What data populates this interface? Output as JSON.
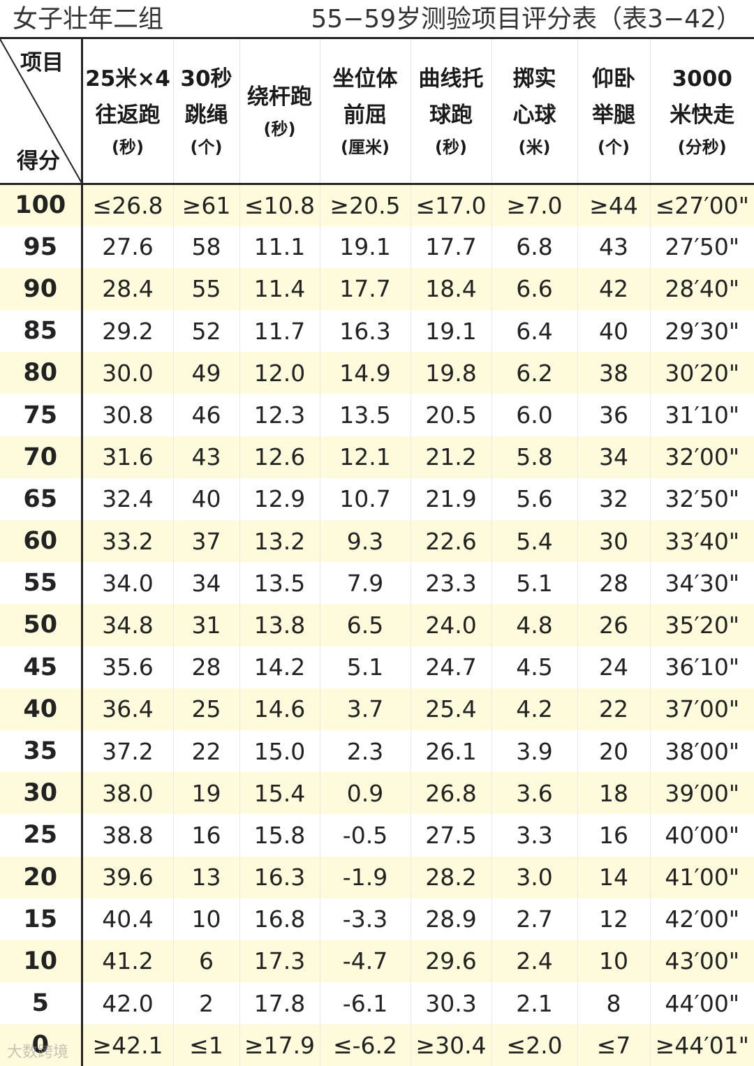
{
  "title": {
    "left": "女子壮年二组",
    "right": "55−59岁测验项目评分表（表3−42）"
  },
  "header": {
    "corner_top": "项目",
    "corner_bottom": "得分",
    "columns": [
      {
        "lines": [
          "25米×4",
          "往返跑"
        ],
        "unit": "(秒)"
      },
      {
        "lines": [
          "30秒",
          "跳绳"
        ],
        "unit": "(个)"
      },
      {
        "lines": [
          "绕杆跑"
        ],
        "unit": "(秒)"
      },
      {
        "lines": [
          "坐位体",
          "前屈"
        ],
        "unit": "(厘米)"
      },
      {
        "lines": [
          "曲线托",
          "球跑"
        ],
        "unit": "(秒)"
      },
      {
        "lines": [
          "掷实",
          "心球"
        ],
        "unit": "(米)"
      },
      {
        "lines": [
          "仰卧",
          "举腿"
        ],
        "unit": "(个)"
      },
      {
        "lines": [
          "3000",
          "米快走"
        ],
        "unit": "(分秒)"
      }
    ]
  },
  "rows": [
    {
      "score": "100",
      "values": [
        "≤26.8",
        "≥61",
        "≤10.8",
        "≥20.5",
        "≤17.0",
        "≥7.0",
        "≥44",
        "≤27′00\""
      ]
    },
    {
      "score": "95",
      "values": [
        "27.6",
        "58",
        "11.1",
        "19.1",
        "17.7",
        "6.8",
        "43",
        "27′50\""
      ]
    },
    {
      "score": "90",
      "values": [
        "28.4",
        "55",
        "11.4",
        "17.7",
        "18.4",
        "6.6",
        "42",
        "28′40\""
      ]
    },
    {
      "score": "85",
      "values": [
        "29.2",
        "52",
        "11.7",
        "16.3",
        "19.1",
        "6.4",
        "40",
        "29′30\""
      ]
    },
    {
      "score": "80",
      "values": [
        "30.0",
        "49",
        "12.0",
        "14.9",
        "19.8",
        "6.2",
        "38",
        "30′20\""
      ]
    },
    {
      "score": "75",
      "values": [
        "30.8",
        "46",
        "12.3",
        "13.5",
        "20.5",
        "6.0",
        "36",
        "31′10\""
      ]
    },
    {
      "score": "70",
      "values": [
        "31.6",
        "43",
        "12.6",
        "12.1",
        "21.2",
        "5.8",
        "34",
        "32′00\""
      ]
    },
    {
      "score": "65",
      "values": [
        "32.4",
        "40",
        "12.9",
        "10.7",
        "21.9",
        "5.6",
        "32",
        "32′50\""
      ]
    },
    {
      "score": "60",
      "values": [
        "33.2",
        "37",
        "13.2",
        "9.3",
        "22.6",
        "5.4",
        "30",
        "33′40\""
      ]
    },
    {
      "score": "55",
      "values": [
        "34.0",
        "34",
        "13.5",
        "7.9",
        "23.3",
        "5.1",
        "28",
        "34′30\""
      ]
    },
    {
      "score": "50",
      "values": [
        "34.8",
        "31",
        "13.8",
        "6.5",
        "24.0",
        "4.8",
        "26",
        "35′20\""
      ]
    },
    {
      "score": "45",
      "values": [
        "35.6",
        "28",
        "14.2",
        "5.1",
        "24.7",
        "4.5",
        "24",
        "36′10\""
      ]
    },
    {
      "score": "40",
      "values": [
        "36.4",
        "25",
        "14.6",
        "3.7",
        "25.4",
        "4.2",
        "22",
        "37′00\""
      ]
    },
    {
      "score": "35",
      "values": [
        "37.2",
        "22",
        "15.0",
        "2.3",
        "26.1",
        "3.9",
        "20",
        "38′00\""
      ]
    },
    {
      "score": "30",
      "values": [
        "38.0",
        "19",
        "15.4",
        "0.9",
        "26.8",
        "3.6",
        "18",
        "39′00\""
      ]
    },
    {
      "score": "25",
      "values": [
        "38.8",
        "16",
        "15.8",
        "-0.5",
        "27.5",
        "3.3",
        "16",
        "40′00\""
      ]
    },
    {
      "score": "20",
      "values": [
        "39.6",
        "13",
        "16.3",
        "-1.9",
        "28.2",
        "3.0",
        "14",
        "41′00\""
      ]
    },
    {
      "score": "15",
      "values": [
        "40.4",
        "10",
        "16.8",
        "-3.3",
        "28.9",
        "2.7",
        "12",
        "42′00\""
      ]
    },
    {
      "score": "10",
      "values": [
        "41.2",
        "6",
        "17.3",
        "-4.7",
        "29.6",
        "2.4",
        "10",
        "43′00\""
      ]
    },
    {
      "score": "5",
      "values": [
        "42.0",
        "2",
        "17.8",
        "-6.1",
        "30.3",
        "2.1",
        "8",
        "44′00\""
      ]
    },
    {
      "score": "0",
      "values": [
        "≥42.1",
        "≤1",
        "≥17.9",
        "≤-6.2",
        "≥30.4",
        "≤2.0",
        "≤7",
        "≥44′01\""
      ]
    }
  ],
  "watermark": "大数跨境"
}
